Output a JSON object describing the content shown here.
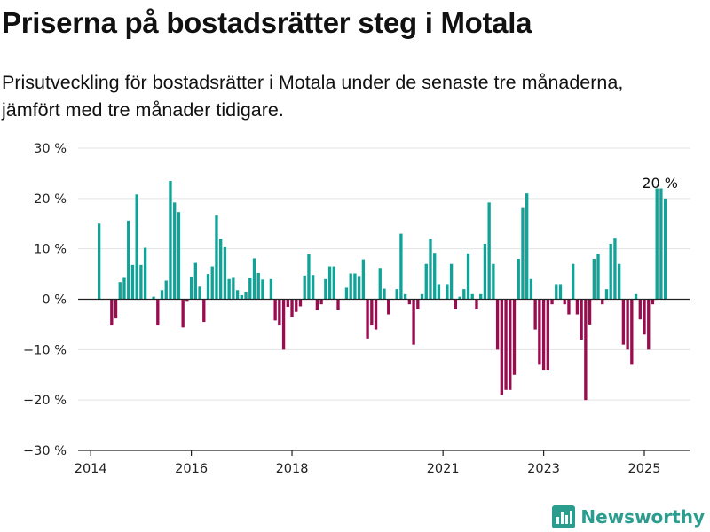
{
  "header": {
    "title": "Priserna på bostadsrätter steg i Motala",
    "subtitle": "Prisutveckling för bostadsrätter i Motala under de senaste tre månaderna, jämfört med tre månader tidigare."
  },
  "brand": {
    "name": "Newsworthy",
    "color": "#2a9d8f",
    "icon": "bar-chart-logo-icon"
  },
  "colors": {
    "positive": "#12a398",
    "negative": "#990c4f",
    "grid": "#e3e3e3",
    "axis": "#222222"
  },
  "chart_data": {
    "type": "bar",
    "title": "Priserna på bostadsrätter steg i Motala",
    "ylabel": "",
    "xlabel": "",
    "ylim": [
      -30,
      30
    ],
    "xlim": [
      "2013-10",
      "2025-12"
    ],
    "grid": true,
    "yticks": [
      {
        "v": 30,
        "label": "30 %"
      },
      {
        "v": 20,
        "label": "20 %"
      },
      {
        "v": 10,
        "label": "10 %"
      },
      {
        "v": 0,
        "label": "0 %"
      },
      {
        "v": -10,
        "label": "−10 %"
      },
      {
        "v": -20,
        "label": "−20 %"
      },
      {
        "v": -30,
        "label": "−30 %"
      }
    ],
    "xticks": [
      {
        "date": "2014-01",
        "label": "2014"
      },
      {
        "date": "2016-01",
        "label": "2016"
      },
      {
        "date": "2018-01",
        "label": "2018"
      },
      {
        "date": "2021-01",
        "label": "2021"
      },
      {
        "date": "2023-01",
        "label": "2023"
      },
      {
        "date": "2025-01",
        "label": "2025"
      }
    ],
    "annotation": {
      "date": "2025-06",
      "value": 20,
      "label": "20 %"
    },
    "points": [
      {
        "date": "2014-03",
        "value": 15
      },
      {
        "date": "2014-06",
        "value": -5.2
      },
      {
        "date": "2014-07",
        "value": -3.8
      },
      {
        "date": "2014-08",
        "value": 3.4
      },
      {
        "date": "2014-09",
        "value": 4.4
      },
      {
        "date": "2014-10",
        "value": 15.6
      },
      {
        "date": "2014-11",
        "value": 6.8
      },
      {
        "date": "2014-12",
        "value": 20.8
      },
      {
        "date": "2015-01",
        "value": 6.8
      },
      {
        "date": "2015-02",
        "value": 10.2
      },
      {
        "date": "2015-04",
        "value": 0.5
      },
      {
        "date": "2015-05",
        "value": -5.2
      },
      {
        "date": "2015-06",
        "value": 1.8
      },
      {
        "date": "2015-07",
        "value": 3.7
      },
      {
        "date": "2015-08",
        "value": 23.5
      },
      {
        "date": "2015-09",
        "value": 19.2
      },
      {
        "date": "2015-10",
        "value": 17.3
      },
      {
        "date": "2015-11",
        "value": -5.6
      },
      {
        "date": "2015-12",
        "value": -0.5
      },
      {
        "date": "2016-01",
        "value": 4.5
      },
      {
        "date": "2016-02",
        "value": 7.2
      },
      {
        "date": "2016-03",
        "value": 2.5
      },
      {
        "date": "2016-04",
        "value": -4.5
      },
      {
        "date": "2016-05",
        "value": 5
      },
      {
        "date": "2016-06",
        "value": 6.5
      },
      {
        "date": "2016-07",
        "value": 16.6
      },
      {
        "date": "2016-08",
        "value": 12
      },
      {
        "date": "2016-09",
        "value": 10.3
      },
      {
        "date": "2016-10",
        "value": 4
      },
      {
        "date": "2016-11",
        "value": 4.4
      },
      {
        "date": "2016-12",
        "value": 1.8
      },
      {
        "date": "2017-01",
        "value": 0.8
      },
      {
        "date": "2017-02",
        "value": 1.5
      },
      {
        "date": "2017-03",
        "value": 4.3
      },
      {
        "date": "2017-04",
        "value": 8.1
      },
      {
        "date": "2017-05",
        "value": 5.2
      },
      {
        "date": "2017-06",
        "value": 3.9
      },
      {
        "date": "2017-08",
        "value": 4
      },
      {
        "date": "2017-09",
        "value": -4.2
      },
      {
        "date": "2017-10",
        "value": -5.2
      },
      {
        "date": "2017-11",
        "value": -10
      },
      {
        "date": "2017-12",
        "value": -1.5
      },
      {
        "date": "2018-01",
        "value": -3.6
      },
      {
        "date": "2018-02",
        "value": -2.5
      },
      {
        "date": "2018-03",
        "value": -1.4
      },
      {
        "date": "2018-04",
        "value": 4.7
      },
      {
        "date": "2018-05",
        "value": 8.9
      },
      {
        "date": "2018-06",
        "value": 4.8
      },
      {
        "date": "2018-07",
        "value": -2.2
      },
      {
        "date": "2018-08",
        "value": -1
      },
      {
        "date": "2018-09",
        "value": 4
      },
      {
        "date": "2018-10",
        "value": 6.5
      },
      {
        "date": "2018-11",
        "value": 6.5
      },
      {
        "date": "2018-12",
        "value": -2.2
      },
      {
        "date": "2019-02",
        "value": 2.3
      },
      {
        "date": "2019-03",
        "value": 5.1
      },
      {
        "date": "2019-04",
        "value": 5.1
      },
      {
        "date": "2019-05",
        "value": 4.6
      },
      {
        "date": "2019-06",
        "value": 7.9
      },
      {
        "date": "2019-07",
        "value": -7.8
      },
      {
        "date": "2019-08",
        "value": -5.2
      },
      {
        "date": "2019-09",
        "value": -6
      },
      {
        "date": "2019-10",
        "value": 6.2
      },
      {
        "date": "2019-11",
        "value": 2.1
      },
      {
        "date": "2019-12",
        "value": -3
      },
      {
        "date": "2020-02",
        "value": 2
      },
      {
        "date": "2020-03",
        "value": 13
      },
      {
        "date": "2020-04",
        "value": 1
      },
      {
        "date": "2020-05",
        "value": -1
      },
      {
        "date": "2020-06",
        "value": -9
      },
      {
        "date": "2020-07",
        "value": -2
      },
      {
        "date": "2020-08",
        "value": 1
      },
      {
        "date": "2020-09",
        "value": 7
      },
      {
        "date": "2020-10",
        "value": 12
      },
      {
        "date": "2020-11",
        "value": 9.2
      },
      {
        "date": "2020-12",
        "value": 3
      },
      {
        "date": "2021-02",
        "value": 3
      },
      {
        "date": "2021-03",
        "value": 7
      },
      {
        "date": "2021-04",
        "value": -2
      },
      {
        "date": "2021-05",
        "value": 0.5
      },
      {
        "date": "2021-06",
        "value": 2
      },
      {
        "date": "2021-07",
        "value": 9.1
      },
      {
        "date": "2021-08",
        "value": 1
      },
      {
        "date": "2021-09",
        "value": -2
      },
      {
        "date": "2021-10",
        "value": 1
      },
      {
        "date": "2021-11",
        "value": 11
      },
      {
        "date": "2021-12",
        "value": 19.2
      },
      {
        "date": "2022-01",
        "value": 7
      },
      {
        "date": "2022-02",
        "value": -10
      },
      {
        "date": "2022-03",
        "value": -19
      },
      {
        "date": "2022-04",
        "value": -18
      },
      {
        "date": "2022-05",
        "value": -18
      },
      {
        "date": "2022-06",
        "value": -15
      },
      {
        "date": "2022-07",
        "value": 8
      },
      {
        "date": "2022-08",
        "value": 18.1
      },
      {
        "date": "2022-09",
        "value": 21
      },
      {
        "date": "2022-10",
        "value": 4
      },
      {
        "date": "2022-11",
        "value": -6
      },
      {
        "date": "2022-12",
        "value": -13
      },
      {
        "date": "2023-01",
        "value": -14
      },
      {
        "date": "2023-02",
        "value": -14
      },
      {
        "date": "2023-03",
        "value": -1
      },
      {
        "date": "2023-04",
        "value": 3
      },
      {
        "date": "2023-05",
        "value": 3
      },
      {
        "date": "2023-06",
        "value": -1
      },
      {
        "date": "2023-07",
        "value": -3
      },
      {
        "date": "2023-08",
        "value": 7
      },
      {
        "date": "2023-09",
        "value": -3
      },
      {
        "date": "2023-10",
        "value": -8
      },
      {
        "date": "2023-11",
        "value": -20
      },
      {
        "date": "2023-12",
        "value": -5
      },
      {
        "date": "2024-01",
        "value": 8
      },
      {
        "date": "2024-02",
        "value": 9
      },
      {
        "date": "2024-03",
        "value": -1
      },
      {
        "date": "2024-04",
        "value": 2
      },
      {
        "date": "2024-05",
        "value": 11
      },
      {
        "date": "2024-06",
        "value": 12.2
      },
      {
        "date": "2024-07",
        "value": 7
      },
      {
        "date": "2024-08",
        "value": -9
      },
      {
        "date": "2024-09",
        "value": -10
      },
      {
        "date": "2024-10",
        "value": -13
      },
      {
        "date": "2024-11",
        "value": 1
      },
      {
        "date": "2024-12",
        "value": -4
      },
      {
        "date": "2025-01",
        "value": -7
      },
      {
        "date": "2025-02",
        "value": -10
      },
      {
        "date": "2025-03",
        "value": -1
      },
      {
        "date": "2025-04",
        "value": 22
      },
      {
        "date": "2025-05",
        "value": 22
      },
      {
        "date": "2025-06",
        "value": 20
      }
    ]
  }
}
